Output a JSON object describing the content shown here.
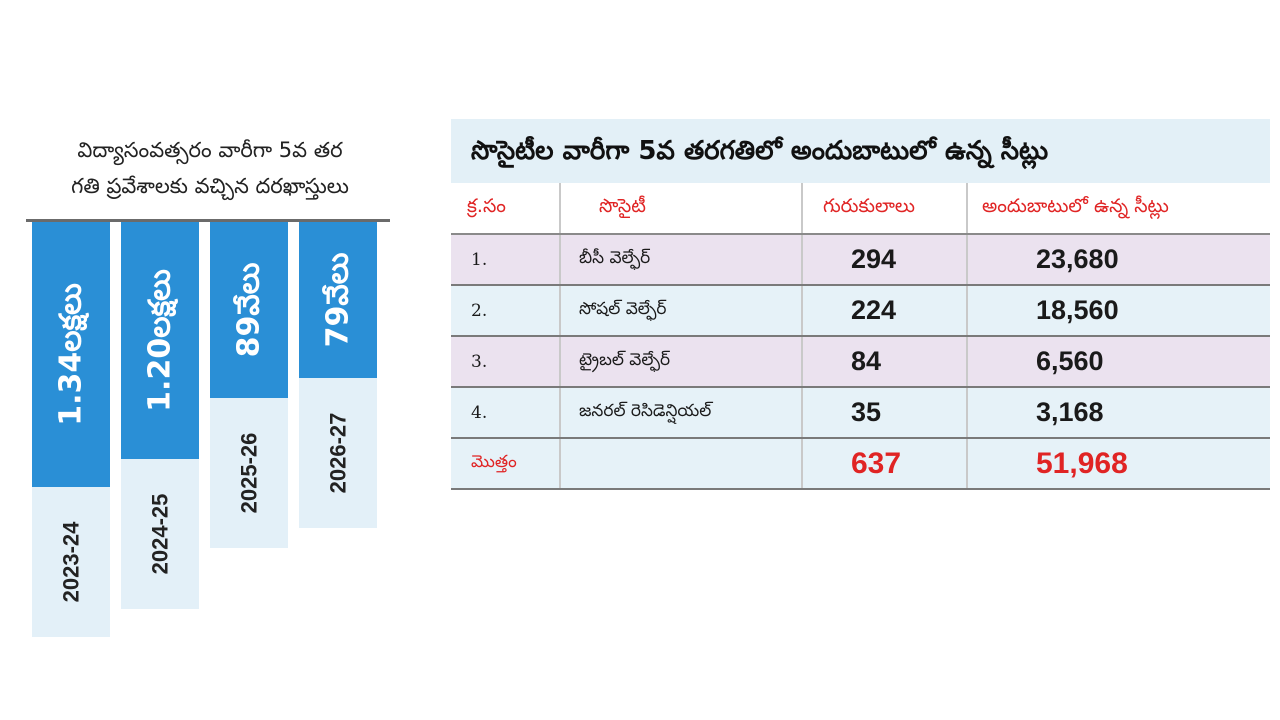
{
  "chart_data": {
    "type": "bar",
    "title_lines": [
      "విద్యాసంవత్సరం వారీగా 5వ తర",
      "గతి ప్రవేశాలకు వచ్చిన దరఖాస్తులు"
    ],
    "categories": [
      "2023-24",
      "2024-25",
      "2025-26",
      "2026-27"
    ],
    "values": [
      134000,
      120000,
      89000,
      79000
    ],
    "value_labels": [
      "1.34లక్షలు",
      "1.20లక్షలు",
      "89వేలు",
      "79వేలు"
    ],
    "colors": {
      "bar": "#2a8fd6",
      "label_box": "#e3f0f8",
      "value_text": "#ffffff",
      "year_text": "#222222"
    }
  },
  "table": {
    "title": "సొసైటీల వారీగా 5వ తరగతిలో అందుబాటులో ఉన్న సీట్లు",
    "headers": [
      "క్ర.సం",
      "సొసైటీ",
      "గురుకులాలు",
      "అందుబాటులో ఉన్న సీట్లు"
    ],
    "rows": [
      {
        "sn": "1.",
        "society": "బీసీ వెల్ఫేర్",
        "gurukulas": "294",
        "seats": "23,680"
      },
      {
        "sn": "2.",
        "society": "సోషల్ వెల్ఫేర్",
        "gurukulas": "224",
        "seats": "18,560"
      },
      {
        "sn": "3.",
        "society": "ట్రైబల్ వెల్ఫేర్",
        "gurukulas": "84",
        "seats": "6,560"
      },
      {
        "sn": "4.",
        "society": "జనరల్ రెసిడెన్షియల్",
        "gurukulas": "35",
        "seats": "3,168"
      }
    ],
    "total": {
      "label": "మొత్తం",
      "gurukulas": "637",
      "seats": "51,968"
    },
    "colors": {
      "header_text": "#e02424",
      "title_bg": "#e3f0f7",
      "row_pink": "#ebe2ef",
      "row_blue": "#e6f2f8",
      "total_text": "#e02424"
    }
  }
}
